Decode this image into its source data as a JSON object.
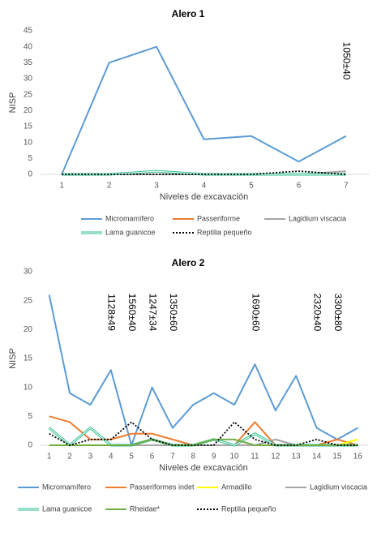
{
  "chart_data": [
    {
      "type": "line",
      "title": "Alero 1",
      "x_label": "Niveles de excavación",
      "y_label": "NISP",
      "categories": [
        "1",
        "2",
        "3",
        "4",
        "5",
        "6",
        "7"
      ],
      "ylim": [
        0,
        45
      ],
      "yticks": [
        0,
        5,
        10,
        15,
        20,
        25,
        30,
        35,
        40,
        45
      ],
      "annotations": [
        {
          "text": "1050±40",
          "at": 7
        }
      ],
      "series": [
        {
          "name": "Micromamífero",
          "color": "#5b9bd5",
          "style": "solid",
          "values": [
            0,
            35,
            40,
            11,
            12,
            4,
            12
          ]
        },
        {
          "name": "Passeriforme",
          "color": "#ed7d31",
          "style": "solid",
          "values": [
            0,
            0,
            0,
            0,
            0,
            0,
            0
          ]
        },
        {
          "name": "Lagidium viscacia",
          "color": "#a5a5a5",
          "style": "solid",
          "values": [
            0,
            0,
            0,
            0,
            0,
            0,
            1
          ]
        },
        {
          "name": "Lama guanicoe",
          "color": "#2fbf8f",
          "style": "double",
          "values": [
            0,
            0,
            1,
            0,
            0,
            0,
            0
          ]
        },
        {
          "name": "Reptilia pequeño",
          "color": "#000000",
          "style": "dotted",
          "values": [
            0,
            0,
            0,
            0,
            0,
            1,
            0
          ]
        }
      ]
    },
    {
      "type": "line",
      "title": "Alero 2",
      "x_label": "Niveles de excavación",
      "y_label": "NISP",
      "categories": [
        "1",
        "2",
        "3",
        "4",
        "5",
        "6",
        "7",
        "8",
        "9",
        "10",
        "11",
        "12",
        "13",
        "14",
        "15",
        "16"
      ],
      "ylim": [
        0,
        30
      ],
      "yticks": [
        0,
        5,
        10,
        15,
        20,
        25,
        30
      ],
      "annotations": [
        {
          "text": "1128±49",
          "at": 4
        },
        {
          "text": "1560±40",
          "at": 5
        },
        {
          "text": "1247±34",
          "at": 6
        },
        {
          "text": "1350±60",
          "at": 7
        },
        {
          "text": "1690±60",
          "at": 11
        },
        {
          "text": "2320±40",
          "at": 14
        },
        {
          "text": "3300±80",
          "at": 15
        }
      ],
      "series": [
        {
          "name": "Micromamífero",
          "color": "#5b9bd5",
          "style": "solid",
          "values": [
            26,
            9,
            7,
            13,
            0,
            10,
            3,
            7,
            9,
            7,
            14,
            6,
            12,
            3,
            1,
            3
          ]
        },
        {
          "name": "Passeriformes indet",
          "color": "#ed7d31",
          "style": "solid",
          "values": [
            5,
            4,
            1,
            1,
            2,
            2,
            1,
            0,
            0,
            0,
            4,
            0,
            0,
            0,
            1,
            0
          ]
        },
        {
          "name": "Armadillo",
          "color": "#ffff00",
          "style": "solid",
          "values": [
            0,
            0,
            0,
            0,
            0,
            0,
            0,
            0,
            0,
            0,
            0,
            0,
            0,
            0,
            0,
            1
          ]
        },
        {
          "name": "Lagidium viscacia",
          "color": "#a5a5a5",
          "style": "solid",
          "values": [
            0,
            0,
            0,
            0,
            0,
            0,
            0,
            0,
            0,
            0,
            0,
            1,
            0,
            0,
            0,
            0
          ]
        },
        {
          "name": "Lama guanicoe",
          "color": "#2fbf8f",
          "style": "double",
          "values": [
            3,
            0,
            3,
            0,
            0,
            1,
            0,
            0,
            1,
            0,
            2,
            0,
            0,
            0,
            0,
            0
          ]
        },
        {
          "name": "Rheidae*",
          "color": "#70ad47",
          "style": "solid",
          "values": [
            0,
            0,
            0,
            0,
            0,
            1,
            0,
            0,
            1,
            1,
            0,
            0,
            0,
            0,
            0,
            0
          ]
        },
        {
          "name": "Reptilia pequeño",
          "color": "#000000",
          "style": "dotted",
          "values": [
            2,
            0,
            1,
            1,
            4,
            1,
            0,
            0,
            0,
            4,
            1,
            0,
            0,
            1,
            0,
            0
          ]
        }
      ]
    }
  ]
}
